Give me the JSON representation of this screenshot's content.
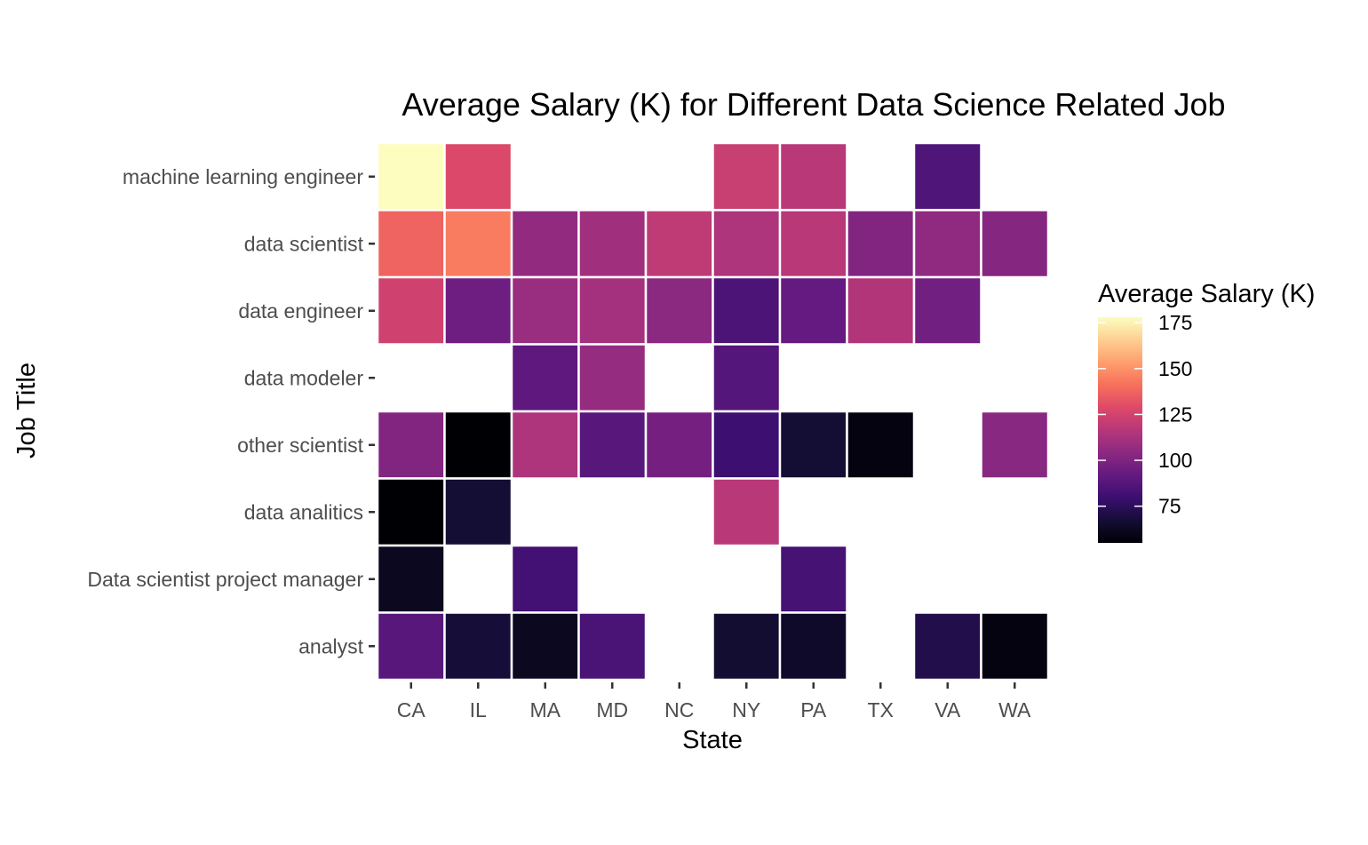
{
  "chart_data": {
    "type": "heatmap",
    "title": "Average Salary (K) for Different Data Science Related Job",
    "xlabel": "State",
    "ylabel": "Job Title",
    "x": [
      "CA",
      "IL",
      "MA",
      "MD",
      "NC",
      "NY",
      "PA",
      "TX",
      "VA",
      "WA"
    ],
    "y": [
      "machine learning engineer",
      "data scientist",
      "data engineer",
      "data modeler",
      "other scientist",
      "data analitics",
      "Data scientist project manager",
      "analyst"
    ],
    "values": [
      [
        178,
        128,
        null,
        null,
        null,
        122,
        117,
        null,
        86,
        null
      ],
      [
        137,
        144,
        106,
        110,
        119,
        114,
        117,
        101,
        105,
        102
      ],
      [
        124,
        95,
        108,
        111,
        104,
        85,
        92,
        115,
        96,
        null
      ],
      [
        null,
        null,
        90,
        107,
        null,
        87,
        null,
        null,
        null,
        null
      ],
      [
        101,
        55,
        114,
        88,
        97,
        80,
        67,
        58,
        null,
        103
      ],
      [
        55,
        67,
        null,
        null,
        null,
        117,
        null,
        null,
        null,
        null
      ],
      [
        62,
        null,
        82,
        null,
        null,
        null,
        83,
        null,
        null,
        null
      ],
      [
        88,
        68,
        62,
        84,
        null,
        66,
        64,
        null,
        72,
        58
      ]
    ],
    "colorbar": {
      "title": "Average Salary (K)",
      "ticks": [
        75,
        100,
        125,
        150,
        175
      ],
      "min": 55,
      "max": 178,
      "colormap": "magma"
    },
    "legend_position": "right",
    "grid": false,
    "background": "#ffffff",
    "tile_border_color": "#ffffff"
  }
}
